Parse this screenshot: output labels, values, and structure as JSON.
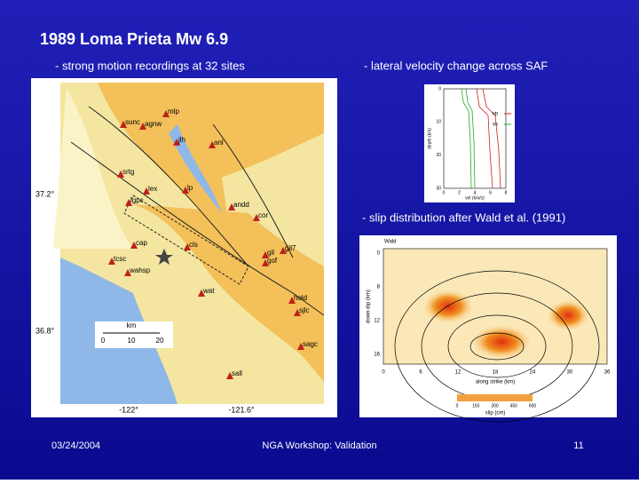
{
  "title": "1989 Loma Prieta Mw 6.9",
  "captions": {
    "left": "- strong motion recordings at 32 sites",
    "right_top": "- lateral velocity change across SAF",
    "right_bottom": "- slip distribution after Wald et al. (1991)"
  },
  "map": {
    "lat_labels": [
      "37.2°",
      "36.8°"
    ],
    "lon_labels": [
      "-122°",
      "-121.6°"
    ],
    "scale": {
      "unit": "km",
      "ticks": [
        0,
        10,
        20
      ]
    },
    "stations": [
      "mlp",
      "sunc",
      "agnw",
      "jlh",
      "anl",
      "srtg",
      "lex",
      "lp",
      "lgpc",
      "andd",
      "cor",
      "cap",
      "cls",
      "tcsc",
      "wahsp",
      "gil",
      "gof",
      "gil7",
      "wat",
      "hold",
      "sjlc",
      "sagc",
      "sall"
    ]
  },
  "velocity_profile": {
    "legend": [
      "vp",
      "vs"
    ],
    "y_label": "depth (km)",
    "x_label": "vel (km/s)",
    "xticks": [
      0,
      2,
      4,
      6,
      8
    ],
    "yticks": [
      0,
      10,
      20,
      30
    ]
  },
  "slip": {
    "label": "Wald",
    "x_label": "along strike (km)",
    "y_label": "down dip (km)",
    "xticks": [
      0,
      6,
      12,
      18,
      24,
      30,
      36
    ],
    "yticks": [
      0,
      8,
      12,
      16
    ],
    "colorbar_ticks": [
      0,
      150,
      300,
      450,
      600
    ],
    "colorbar_label": "slip (cm)"
  },
  "footer": {
    "date": "03/24/2004",
    "center": "NGA Workshop: Validation",
    "page": "11"
  }
}
